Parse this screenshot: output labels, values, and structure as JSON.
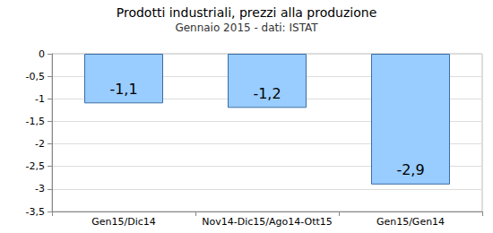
{
  "chart_data": {
    "type": "bar",
    "title": "Prodotti industriali, prezzi alla produzione",
    "subtitle": "Gennaio 2015 - dati: ISTAT",
    "categories": [
      "Gen15/Dic14",
      "Nov14-Dic15/Ago14-Ott15",
      "Gen15/Gen14"
    ],
    "values": [
      -1.1,
      -1.2,
      -2.9
    ],
    "value_labels": [
      "-1,1",
      "-1,2",
      "-2,9"
    ],
    "color": "#99ccff",
    "ylim": [
      -3.5,
      0
    ],
    "yticks": [
      {
        "value": -3.5,
        "label": "-3,5"
      },
      -3,
      {
        "value": -2.5,
        "label": "-2,5"
      },
      -2,
      {
        "value": -1.5,
        "label": "-1,5"
      },
      -1,
      {
        "value": -0.5,
        "label": "-0,5"
      },
      0
    ],
    "grid": true,
    "data_labels": true
  }
}
